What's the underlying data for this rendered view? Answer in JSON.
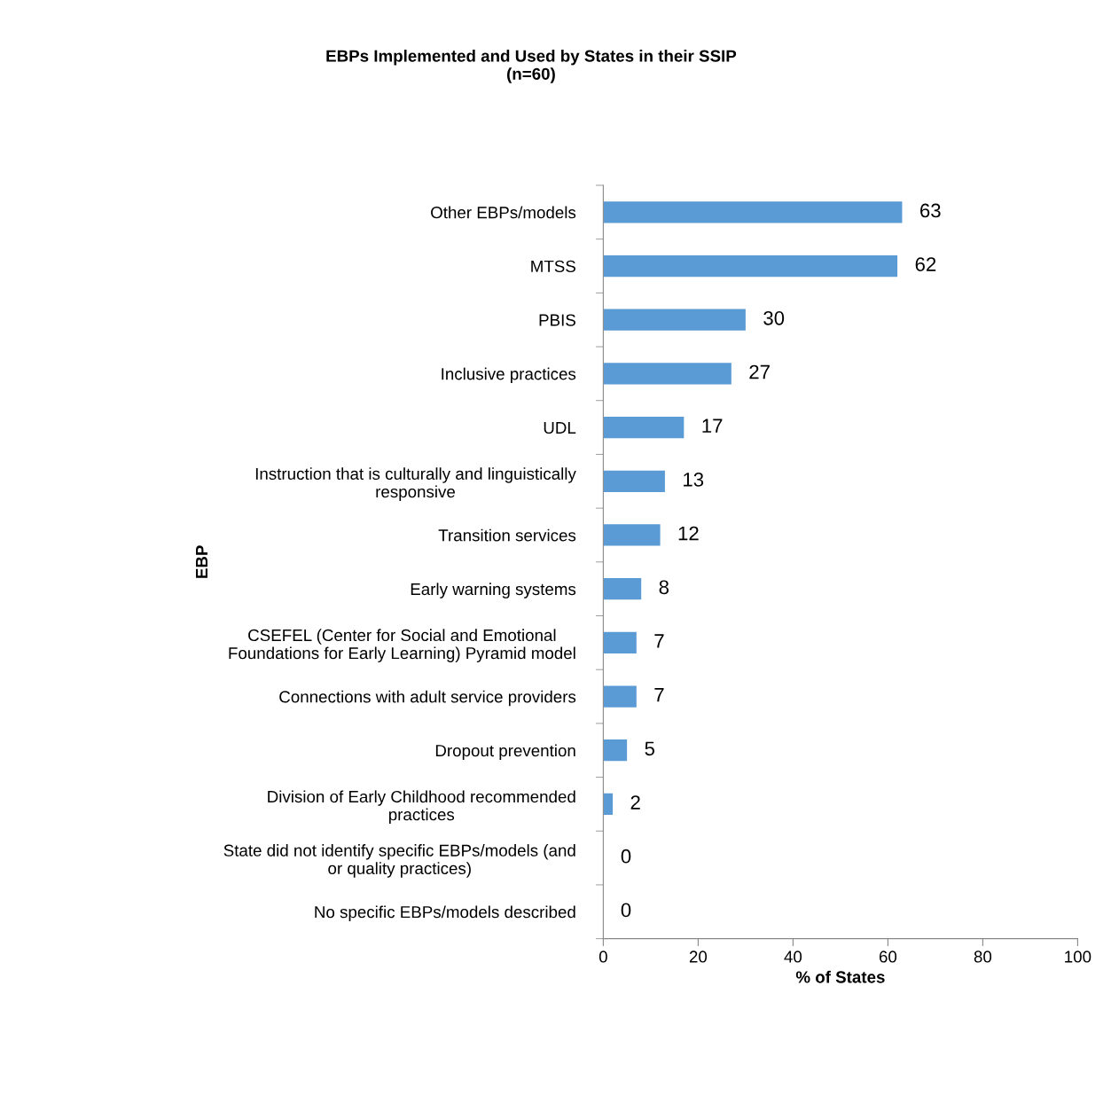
{
  "chart_data": {
    "type": "bar",
    "orientation": "horizontal",
    "title": "EBPs Implemented and Used by States in their SSIP\n(n=60)",
    "xlabel": "% of States",
    "ylabel": "EBP",
    "categories": [
      "Other EBPs/models",
      "MTSS",
      "PBIS",
      "Inclusive practices",
      "UDL",
      "Instruction that is culturally and linguistically\nresponsive",
      "Transition services",
      "Early warning systems",
      "CSEFEL (Center for Social and Emotional\nFoundations for Early Learning) Pyramid model",
      "Connections with adult service providers",
      "Dropout prevention",
      "Division of Early Childhood recommended\npractices",
      "State did not identify specific EBPs/models (and\nor quality practices)",
      "No specific EBPs/models described"
    ],
    "values": [
      63,
      62,
      30,
      27,
      17,
      13,
      12,
      8,
      7,
      7,
      5,
      2,
      0,
      0
    ],
    "color": "#5b9bd5",
    "xlim": [
      0,
      100
    ],
    "xticks": [
      0,
      20,
      40,
      60,
      80,
      100
    ],
    "data_labels": true,
    "grid": false,
    "legend": false
  }
}
